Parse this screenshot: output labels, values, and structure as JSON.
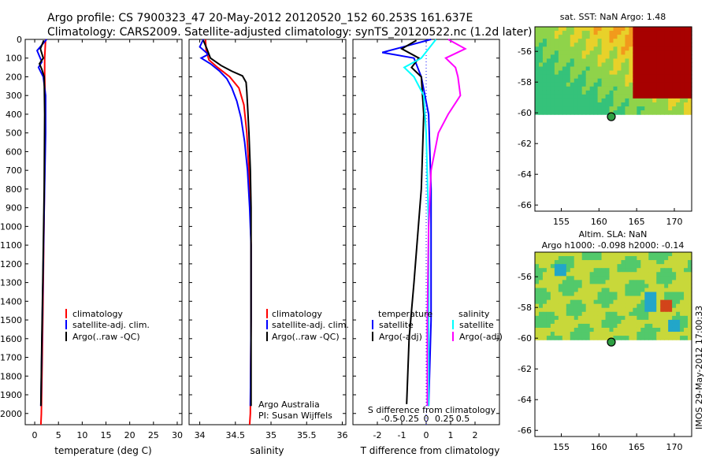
{
  "title": {
    "line1": "Argo profile: CS 7900323_47 20-May-2012 20120520_152 60.253S 161.637E",
    "line2": "Climatology: CARS2009. Satellite-adjusted climatology: synTS_20120522.nc (1.2d later)"
  },
  "side_stamp": "IMOS 29-May-2012 17:00:33",
  "colors": {
    "climatology": "#ff0000",
    "satellite": "#0000ff",
    "argo": "#000000",
    "cyan": "#00ffff",
    "magenta": "#ff00ff"
  },
  "chart_data": [
    {
      "id": "temperature",
      "type": "line",
      "xlabel": "temperature (deg C)",
      "xlim": [
        -2,
        31
      ],
      "xticks": [
        0,
        5,
        10,
        15,
        20,
        25,
        30
      ],
      "ylim": [
        2060,
        0
      ],
      "yticks": [
        0,
        100,
        200,
        300,
        400,
        500,
        600,
        700,
        800,
        900,
        1000,
        1100,
        1200,
        1300,
        1400,
        1500,
        1600,
        1700,
        1800,
        1900,
        2000
      ],
      "legend": [
        "climatology",
        "satellite-adj. clim.",
        "Argo(..raw -QC)"
      ],
      "series": [
        {
          "name": "climatology",
          "color": "#ff0000",
          "points": [
            [
              2.3,
              0
            ],
            [
              2.2,
              50
            ],
            [
              2.1,
              100
            ],
            [
              2.1,
              200
            ],
            [
              2.2,
              300
            ],
            [
              2.2,
              500
            ],
            [
              2.0,
              900
            ],
            [
              1.7,
              1500
            ],
            [
              1.4,
              2000
            ],
            [
              1.3,
              2060
            ]
          ]
        },
        {
          "name": "satellite-adj. clim.",
          "color": "#0000ff",
          "points": [
            [
              2.5,
              0
            ],
            [
              0.5,
              60
            ],
            [
              1.5,
              120
            ],
            [
              0.8,
              150
            ],
            [
              1.8,
              200
            ],
            [
              2.3,
              300
            ],
            [
              2.3,
              500
            ],
            [
              2.0,
              900
            ],
            [
              1.6,
              1500
            ],
            [
              1.3,
              1960
            ]
          ]
        },
        {
          "name": "Argo(..raw -QC)",
          "color": "#000000",
          "points": [
            [
              1.9,
              5
            ],
            [
              1.2,
              50
            ],
            [
              1.8,
              100
            ],
            [
              1.0,
              130
            ],
            [
              1.5,
              160
            ],
            [
              2.0,
              200
            ],
            [
              2.1,
              400
            ],
            [
              2.0,
              800
            ],
            [
              1.7,
              1300
            ],
            [
              1.5,
              1600
            ],
            [
              1.3,
              1960
            ]
          ]
        }
      ]
    },
    {
      "id": "salinity",
      "type": "line",
      "xlabel": "salinity",
      "xlim": [
        33.85,
        36.05
      ],
      "xticks": [
        34,
        34.5,
        35,
        35.5,
        36
      ],
      "xticklabels": [
        "34",
        "34.5",
        "35",
        "35.5",
        "36"
      ],
      "ylim": [
        2060,
        0
      ],
      "legend": [
        "climatology",
        "satellite-adj. clim.",
        "Argo(..raw -QC)"
      ],
      "credit": [
        "Argo Australia",
        "PI: Susan Wijffels"
      ],
      "series": [
        {
          "name": "climatology",
          "color": "#ff0000",
          "points": [
            [
              34.08,
              0
            ],
            [
              34.09,
              60
            ],
            [
              34.13,
              110
            ],
            [
              34.25,
              150
            ],
            [
              34.42,
              200
            ],
            [
              34.55,
              260
            ],
            [
              34.62,
              350
            ],
            [
              34.66,
              500
            ],
            [
              34.69,
              700
            ],
            [
              34.71,
              900
            ],
            [
              34.72,
              1100
            ],
            [
              34.72,
              1500
            ],
            [
              34.71,
              2000
            ],
            [
              34.7,
              2060
            ]
          ]
        },
        {
          "name": "satellite-adj. clim.",
          "color": "#0000ff",
          "points": [
            [
              34.05,
              0
            ],
            [
              34.0,
              40
            ],
            [
              34.12,
              80
            ],
            [
              34.02,
              100
            ],
            [
              34.15,
              130
            ],
            [
              34.28,
              170
            ],
            [
              34.38,
              210
            ],
            [
              34.45,
              260
            ],
            [
              34.52,
              330
            ],
            [
              34.58,
              420
            ],
            [
              34.63,
              550
            ],
            [
              34.67,
              700
            ],
            [
              34.7,
              900
            ],
            [
              34.72,
              1100
            ],
            [
              34.72,
              1500
            ],
            [
              34.71,
              1960
            ]
          ]
        },
        {
          "name": "Argo(..raw -QC)",
          "color": "#000000",
          "points": [
            [
              34.05,
              5
            ],
            [
              34.1,
              50
            ],
            [
              34.15,
              100
            ],
            [
              34.3,
              140
            ],
            [
              34.45,
              170
            ],
            [
              34.6,
              195
            ],
            [
              34.65,
              230
            ],
            [
              34.66,
              280
            ],
            [
              34.67,
              350
            ],
            [
              34.69,
              500
            ],
            [
              34.71,
              700
            ],
            [
              34.72,
              900
            ],
            [
              34.72,
              1200
            ],
            [
              34.72,
              1600
            ],
            [
              34.72,
              1960
            ]
          ]
        }
      ]
    },
    {
      "id": "difference",
      "type": "line",
      "xlabel": "T difference from climatology",
      "x2label": "S difference from climatology",
      "xlim": [
        -3,
        3
      ],
      "xticks": [
        -2,
        -1,
        0,
        1,
        2
      ],
      "x2ticks": [
        "-0.5",
        "-0.25",
        "0",
        "0.25",
        "0.5"
      ],
      "ylim": [
        2060,
        0
      ],
      "legend_t": {
        "title": "temperature",
        "items": [
          "satellite",
          "Argo(-adj)"
        ]
      },
      "legend_s": {
        "title": "salinity",
        "items": [
          "satellite",
          "Argo(-adj)"
        ]
      },
      "series": [
        {
          "name": "T satellite",
          "color": "#0000ff",
          "points": [
            [
              0.2,
              0
            ],
            [
              -1.8,
              70
            ],
            [
              -0.5,
              100
            ],
            [
              -0.2,
              200
            ],
            [
              0.1,
              400
            ],
            [
              0.2,
              800
            ],
            [
              0.2,
              1500
            ],
            [
              0.1,
              1960
            ]
          ]
        },
        {
          "name": "T Argo(-adj)",
          "color": "#000000",
          "points": [
            [
              -0.4,
              5
            ],
            [
              -1.0,
              50
            ],
            [
              -0.3,
              100
            ],
            [
              -0.6,
              150
            ],
            [
              -0.2,
              200
            ],
            [
              -0.1,
              400
            ],
            [
              -0.2,
              800
            ],
            [
              -0.5,
              1300
            ],
            [
              -0.7,
              1600
            ],
            [
              -0.8,
              1950
            ]
          ]
        },
        {
          "name": "S satellite",
          "color": "#00ffff",
          "points": [
            [
              0.4,
              0
            ],
            [
              -0.2,
              100
            ],
            [
              -0.9,
              150
            ],
            [
              -0.5,
              200
            ],
            [
              -0.1,
              300
            ],
            [
              0.0,
              500
            ],
            [
              0.1,
              1000
            ],
            [
              0.1,
              1960
            ]
          ]
        },
        {
          "name": "S Argo(-adj)",
          "color": "#ff00ff",
          "points": [
            [
              0.9,
              0
            ],
            [
              1.6,
              50
            ],
            [
              0.8,
              100
            ],
            [
              1.2,
              150
            ],
            [
              1.3,
              200
            ],
            [
              1.4,
              300
            ],
            [
              0.9,
              400
            ],
            [
              0.5,
              500
            ],
            [
              0.2,
              700
            ],
            [
              0.1,
              1000
            ],
            [
              0.05,
              1500
            ],
            [
              0.05,
              1960
            ]
          ]
        }
      ]
    },
    {
      "id": "sst-map",
      "type": "heatmap",
      "title": "sat. SST: NaN Argo: 1.48",
      "xticks": [
        155,
        160,
        165,
        170
      ],
      "yticks": [
        -56,
        -58,
        -60,
        -62,
        -64,
        -66
      ],
      "profile_location": [
        161.637,
        -60.253
      ]
    },
    {
      "id": "sla-map",
      "type": "heatmap",
      "title_lines": [
        "Altim. SLA: NaN",
        "Argo h1000: -0.098 h2000: -0.14"
      ],
      "xticks": [
        155,
        160,
        165,
        170
      ],
      "yticks": [
        -56,
        -58,
        -60,
        -62,
        -64,
        -66
      ],
      "profile_location": [
        161.637,
        -60.253
      ]
    }
  ]
}
